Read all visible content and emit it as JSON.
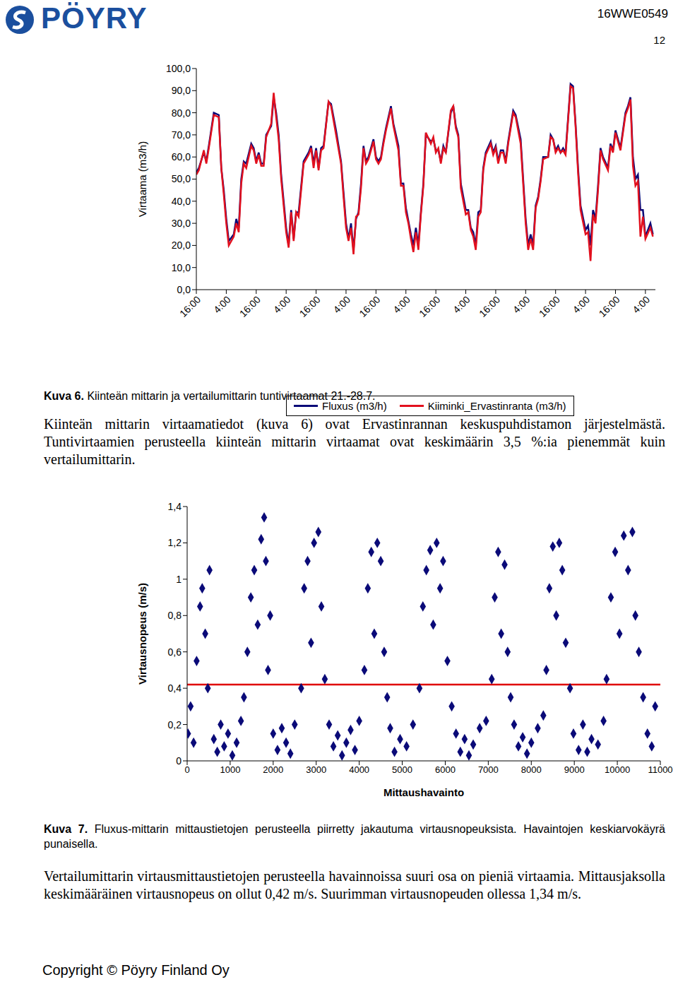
{
  "header": {
    "logo": "PÖYRY",
    "doc_id": "16WWE0549",
    "page": "12"
  },
  "chart_data": [
    {
      "type": "line",
      "ylabel": "Virtaama (m3/h)",
      "legend": "bottom",
      "x": [
        0,
        1,
        3,
        4,
        5,
        7,
        9,
        10,
        11,
        12,
        13,
        15,
        16,
        17,
        18,
        19,
        20,
        22,
        23,
        24,
        25,
        26,
        27,
        28,
        30,
        31,
        32,
        33,
        34,
        36,
        37,
        38,
        39,
        40,
        41,
        43,
        45,
        46,
        47,
        48,
        49,
        50,
        51,
        53,
        54,
        56,
        58,
        59,
        60,
        61,
        62,
        63,
        64,
        65,
        66,
        67,
        68,
        69,
        71,
        72,
        73,
        74,
        75,
        76,
        78,
        79,
        81,
        82,
        83,
        84,
        85,
        86,
        87,
        88,
        89,
        90,
        91,
        92,
        94,
        95,
        96,
        97,
        98,
        99,
        100,
        102,
        103,
        104,
        105,
        106,
        108,
        109,
        110,
        111,
        112,
        113,
        114,
        115,
        116,
        118,
        119,
        120,
        121,
        122,
        123,
        124,
        125,
        127,
        128,
        130,
        131,
        132,
        133,
        134,
        135,
        136,
        137,
        138,
        139,
        141,
        142,
        143,
        144,
        145,
        146,
        147,
        148,
        150,
        151,
        152,
        153,
        154,
        156,
        157,
        158,
        159,
        160,
        161,
        162,
        163,
        165,
        166,
        167,
        168,
        169,
        170,
        172,
        173,
        174,
        175,
        176,
        177,
        178,
        179,
        180,
        182,
        183
      ],
      "xlim": [
        0,
        184
      ],
      "xticks": [
        {
          "value": 0,
          "label": "16:00"
        },
        {
          "value": 12,
          "label": "4:00"
        },
        {
          "value": 24,
          "label": "16:00"
        },
        {
          "value": 36,
          "label": "4:00"
        },
        {
          "value": 48,
          "label": "16:00"
        },
        {
          "value": 60,
          "label": "4:00"
        },
        {
          "value": 72,
          "label": "16:00"
        },
        {
          "value": 84,
          "label": "4:00"
        },
        {
          "value": 96,
          "label": "16:00"
        },
        {
          "value": 108,
          "label": "4:00"
        },
        {
          "value": 120,
          "label": "16:00"
        },
        {
          "value": 132,
          "label": "4:00"
        },
        {
          "value": 144,
          "label": "16:00"
        },
        {
          "value": 156,
          "label": "4:00"
        },
        {
          "value": 168,
          "label": "16:00"
        },
        {
          "value": 180,
          "label": "4:00"
        }
      ],
      "ylim": [
        0,
        100
      ],
      "yticks": [
        {
          "value": 0,
          "label": "0,0"
        },
        {
          "value": 10,
          "label": "10,0"
        },
        {
          "value": 20,
          "label": "20,0"
        },
        {
          "value": 30,
          "label": "30,0"
        },
        {
          "value": 40,
          "label": "40,0"
        },
        {
          "value": 50,
          "label": "50,0"
        },
        {
          "value": 60,
          "label": "60,0"
        },
        {
          "value": 70,
          "label": "70,0"
        },
        {
          "value": 80,
          "label": "80,0"
        },
        {
          "value": 90,
          "label": "90,0"
        },
        {
          "value": 100,
          "label": "100,0"
        }
      ],
      "series": [
        {
          "name": "Fluxus (m3/h)",
          "color": "#0a0a78",
          "values": [
            53,
            55,
            62,
            58,
            65,
            80,
            79,
            55,
            45,
            32,
            22,
            25,
            32,
            28,
            50,
            58,
            57,
            66,
            64,
            58,
            62,
            57,
            57,
            70,
            74,
            87,
            80,
            70,
            52,
            28,
            20,
            36,
            23,
            35,
            35,
            58,
            62,
            65,
            57,
            64,
            55,
            64,
            65,
            85,
            84,
            72,
            58,
            44,
            30,
            23,
            30,
            18,
            32,
            35,
            48,
            65,
            58,
            60,
            68,
            60,
            58,
            60,
            67,
            73,
            83,
            75,
            65,
            48,
            48,
            37,
            31,
            25,
            20,
            28,
            20,
            35,
            48,
            70,
            67,
            68,
            63,
            63,
            58,
            65,
            62,
            80,
            83,
            74,
            70,
            48,
            36,
            36,
            28,
            26,
            20,
            35,
            36,
            55,
            62,
            67,
            62,
            65,
            58,
            63,
            63,
            58,
            67,
            81,
            79,
            68,
            50,
            32,
            20,
            25,
            20,
            38,
            42,
            50,
            60,
            60,
            70,
            68,
            63,
            65,
            62,
            64,
            62,
            93,
            92,
            75,
            55,
            38,
            27,
            29,
            20,
            36,
            32,
            47,
            64,
            60,
            55,
            66,
            63,
            72,
            68,
            64,
            80,
            83,
            87,
            60,
            50,
            52,
            36,
            36,
            24,
            30,
            25
          ]
        },
        {
          "name": "Kiiminki_Ervastinranta (m3/h)",
          "color": "#e2101e",
          "values": [
            52,
            54,
            63,
            57,
            64,
            79,
            78,
            55,
            43,
            30,
            20,
            24,
            30,
            26,
            48,
            57,
            55,
            65,
            63,
            57,
            61,
            56,
            56,
            69,
            75,
            89,
            78,
            68,
            50,
            26,
            19,
            35,
            22,
            35,
            33,
            57,
            61,
            64,
            55,
            63,
            54,
            63,
            64,
            85,
            83,
            70,
            57,
            42,
            28,
            22,
            28,
            16,
            33,
            34,
            46,
            64,
            57,
            59,
            67,
            59,
            57,
            59,
            66,
            72,
            82,
            74,
            63,
            47,
            47,
            35,
            30,
            23,
            17,
            26,
            18,
            34,
            47,
            71,
            66,
            69,
            62,
            64,
            57,
            64,
            62,
            81,
            83,
            73,
            69,
            46,
            34,
            35,
            27,
            24,
            18,
            33,
            35,
            54,
            61,
            66,
            61,
            64,
            57,
            62,
            62,
            57,
            66,
            80,
            78,
            66,
            48,
            30,
            18,
            23,
            18,
            37,
            41,
            49,
            59,
            60,
            69,
            68,
            62,
            64,
            62,
            63,
            61,
            92,
            91,
            74,
            53,
            36,
            25,
            26,
            13,
            34,
            30,
            45,
            63,
            59,
            54,
            65,
            62,
            71,
            67,
            63,
            79,
            82,
            86,
            56,
            47,
            49,
            24,
            33,
            23,
            28,
            24
          ]
        }
      ]
    },
    {
      "type": "scatter",
      "xlabel": "Mittaushavainto",
      "ylabel": "Virtausnopeus (m/s)",
      "xlim": [
        0,
        11000
      ],
      "xticks": [
        0,
        1000,
        2000,
        3000,
        4000,
        5000,
        6000,
        7000,
        8000,
        9000,
        10000,
        11000
      ],
      "ylim": [
        0,
        1.4
      ],
      "yticks": [
        0,
        {
          "value": 0.2,
          "label": "0,2"
        },
        {
          "value": 0.4,
          "label": "0,4"
        },
        {
          "value": 0.6,
          "label": "0,6"
        },
        {
          "value": 0.8,
          "label": "0,8"
        },
        1,
        {
          "value": 1.2,
          "label": "1,2"
        },
        {
          "value": 1.4,
          "label": "1,4"
        }
      ],
      "mean": {
        "value": 0.42,
        "color": "#e00000"
      },
      "series": [
        {
          "color": "#0a0a78",
          "marker": "diamond",
          "x": [
            20,
            80,
            150,
            220,
            300,
            350,
            420,
            480,
            520,
            620,
            700,
            780,
            860,
            950,
            1050,
            1150,
            1250,
            1320,
            1400,
            1480,
            1560,
            1640,
            1720,
            1790,
            1830,
            1880,
            1930,
            2000,
            2100,
            2200,
            2300,
            2400,
            2500,
            2650,
            2720,
            2800,
            2880,
            2950,
            3050,
            3120,
            3200,
            3300,
            3400,
            3500,
            3600,
            3700,
            3800,
            3900,
            4000,
            4120,
            4200,
            4280,
            4350,
            4420,
            4500,
            4580,
            4650,
            4720,
            4820,
            4950,
            5100,
            5250,
            5400,
            5480,
            5560,
            5650,
            5720,
            5800,
            5880,
            5950,
            6050,
            6150,
            6250,
            6350,
            6450,
            6550,
            6650,
            6800,
            6950,
            7080,
            7150,
            7230,
            7300,
            7380,
            7450,
            7520,
            7600,
            7700,
            7800,
            7900,
            8000,
            8150,
            8280,
            8350,
            8420,
            8500,
            8580,
            8650,
            8720,
            8800,
            8900,
            8980,
            9100,
            9200,
            9300,
            9400,
            9550,
            9680,
            9750,
            9850,
            9950,
            10050,
            10150,
            10250,
            10350,
            10420,
            10500,
            10600,
            10700,
            10800,
            10880
          ],
          "values": [
            0.15,
            0.3,
            0.1,
            0.55,
            0.85,
            0.95,
            0.7,
            0.4,
            1.05,
            0.12,
            0.05,
            0.2,
            0.08,
            0.15,
            0.03,
            0.1,
            0.22,
            0.35,
            0.6,
            0.9,
            1.05,
            0.75,
            1.22,
            1.34,
            1.1,
            0.5,
            0.8,
            0.15,
            0.06,
            0.18,
            0.1,
            0.04,
            0.2,
            0.4,
            0.95,
            1.1,
            0.65,
            1.2,
            1.26,
            0.85,
            0.45,
            0.2,
            0.08,
            0.14,
            0.03,
            0.1,
            0.17,
            0.06,
            0.22,
            0.5,
            0.95,
            1.15,
            0.7,
            1.2,
            1.1,
            0.6,
            0.35,
            0.18,
            0.05,
            0.12,
            0.08,
            0.2,
            0.4,
            0.85,
            1.05,
            1.16,
            0.75,
            1.2,
            0.95,
            1.1,
            0.55,
            0.3,
            0.15,
            0.05,
            0.12,
            0.03,
            0.09,
            0.18,
            0.22,
            0.45,
            0.9,
            1.15,
            0.7,
            1.08,
            0.6,
            0.35,
            0.2,
            0.08,
            0.13,
            0.04,
            0.1,
            0.18,
            0.25,
            0.5,
            0.95,
            1.18,
            0.8,
            1.2,
            1.05,
            0.65,
            0.4,
            0.15,
            0.06,
            0.2,
            0.05,
            0.12,
            0.09,
            0.22,
            0.45,
            0.9,
            1.15,
            0.7,
            1.24,
            1.05,
            1.26,
            0.8,
            0.6,
            0.35,
            0.15,
            0.08,
            0.3
          ]
        }
      ]
    }
  ],
  "captions": [
    {
      "label": "Kuva 6.",
      "text": "Kiinteän mittarin ja vertailumittarin tuntivirtaamat 21.-28.7."
    },
    {
      "label": "Kuva 7.",
      "text": "Fluxus-mittarin mittaustietojen perusteella piirretty jakautuma virtausnopeuksista. Havaintojen keskiarvokäyrä punaisella."
    }
  ],
  "paragraphs": [
    "Kiinteän mittarin virtaamatiedot (kuva 6) ovat Ervastinrannan keskuspuhdistamon järjestelmästä. Tuntivirtaamien perusteella kiinteän mittarin virtaamat ovat keskimäärin 3,5 %:ia pienemmät kuin vertailumittarin.",
    "Vertailumittarin virtausmittaustietojen perusteella havainnoissa suuri osa on pieniä virtaamia. Mittausjaksolla keskimääräinen virtausnopeus on ollut 0,42 m/s. Suurimman virtausnopeuden ollessa 1,34 m/s."
  ],
  "footer": "Copyright © Pöyry Finland Oy"
}
